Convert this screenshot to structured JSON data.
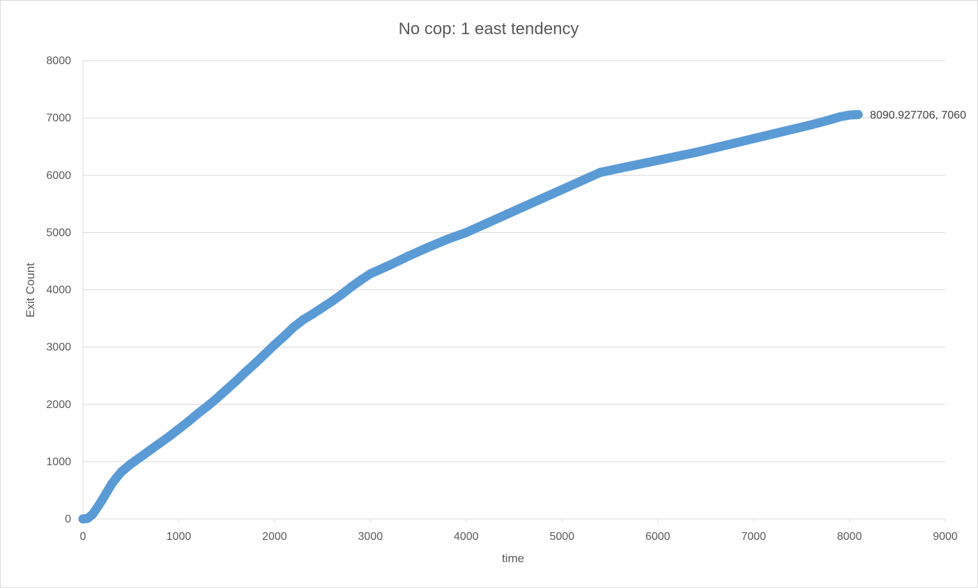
{
  "chart_data": {
    "type": "scatter",
    "title": "No cop: 1 east tendency",
    "xlabel": "time",
    "ylabel": "Exit Count",
    "xlim": [
      0,
      9000
    ],
    "ylim": [
      0,
      8000
    ],
    "x_ticks": [
      0,
      1000,
      2000,
      3000,
      4000,
      5000,
      6000,
      7000,
      8000,
      9000
    ],
    "y_ticks": [
      0,
      1000,
      2000,
      3000,
      4000,
      5000,
      6000,
      7000,
      8000
    ],
    "grid": "horizontal",
    "legend": "none",
    "series": [
      {
        "color": "#5b9bd5",
        "points": [
          [
            0,
            0
          ],
          [
            50,
            10
          ],
          [
            100,
            80
          ],
          [
            150,
            200
          ],
          [
            200,
            330
          ],
          [
            250,
            470
          ],
          [
            300,
            610
          ],
          [
            350,
            720
          ],
          [
            400,
            820
          ],
          [
            500,
            960
          ],
          [
            600,
            1080
          ],
          [
            700,
            1200
          ],
          [
            800,
            1320
          ],
          [
            900,
            1440
          ],
          [
            1000,
            1570
          ],
          [
            1100,
            1700
          ],
          [
            1200,
            1840
          ],
          [
            1300,
            1970
          ],
          [
            1400,
            2110
          ],
          [
            1500,
            2260
          ],
          [
            1600,
            2410
          ],
          [
            1700,
            2570
          ],
          [
            1800,
            2720
          ],
          [
            1900,
            2880
          ],
          [
            2000,
            3040
          ],
          [
            2100,
            3190
          ],
          [
            2200,
            3350
          ],
          [
            2300,
            3480
          ],
          [
            2400,
            3580
          ],
          [
            2500,
            3690
          ],
          [
            2600,
            3800
          ],
          [
            2700,
            3920
          ],
          [
            2800,
            4050
          ],
          [
            2900,
            4170
          ],
          [
            3000,
            4280
          ],
          [
            3200,
            4430
          ],
          [
            3400,
            4590
          ],
          [
            3600,
            4740
          ],
          [
            3800,
            4880
          ],
          [
            4000,
            5000
          ],
          [
            4200,
            5150
          ],
          [
            4400,
            5300
          ],
          [
            4600,
            5450
          ],
          [
            4800,
            5600
          ],
          [
            5000,
            5750
          ],
          [
            5200,
            5900
          ],
          [
            5400,
            6050
          ],
          [
            5600,
            6120
          ],
          [
            5800,
            6190
          ],
          [
            6000,
            6260
          ],
          [
            6200,
            6330
          ],
          [
            6400,
            6400
          ],
          [
            6600,
            6480
          ],
          [
            6800,
            6560
          ],
          [
            7000,
            6640
          ],
          [
            7200,
            6720
          ],
          [
            7400,
            6800
          ],
          [
            7600,
            6880
          ],
          [
            7800,
            6970
          ],
          [
            7900,
            7020
          ],
          [
            8000,
            7050
          ],
          [
            8090.927706,
            7060
          ]
        ]
      }
    ],
    "annotations": [
      {
        "text": "8090.927706, 7060",
        "x": 8090.927706,
        "y": 7060
      }
    ]
  }
}
